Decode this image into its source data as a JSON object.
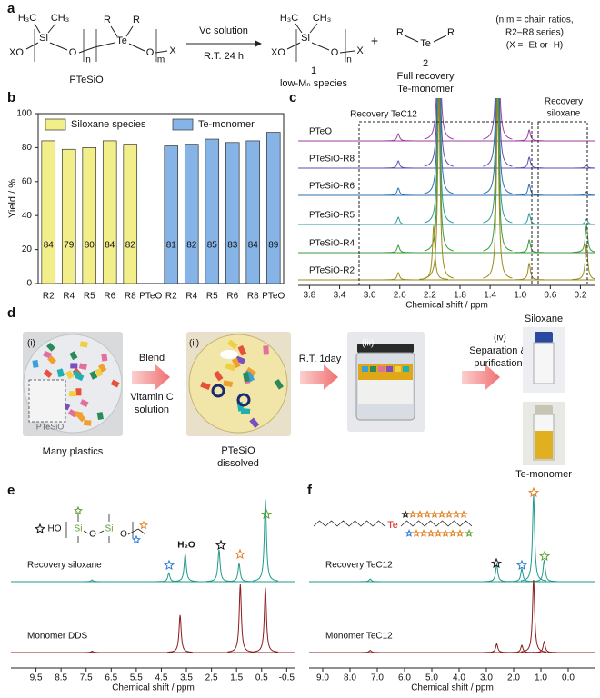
{
  "panel_labels": [
    "a",
    "b",
    "c",
    "d",
    "e",
    "f"
  ],
  "scheme": {
    "atoms": [
      "H₃C",
      "CH₃",
      "Si",
      "XO",
      "O",
      "n",
      "R",
      "R",
      "Te",
      "O",
      "m",
      "X",
      "H₃C",
      "CH₃",
      "Si",
      "XO",
      "O",
      "n",
      "X",
      "R",
      "Te",
      "R"
    ],
    "reactant_label": "PTeSiO",
    "arrow_top": "Vc solution",
    "arrow_bottom": "R.T. 24 h",
    "product1_number": "1",
    "product1_label": "low-Mₙ species",
    "plus": "+",
    "product2_number": "2",
    "product2_label": [
      "Full recovery",
      "Te-monomer"
    ],
    "note": [
      "(n:m = chain ratios,",
      "R2–R8 series)",
      "(X = -Et or -H)"
    ]
  },
  "process": {
    "steps": [
      "(i)",
      "(ii)",
      "(iii)",
      "(iv)"
    ],
    "texts": [
      "PTeSiO",
      "Many plastics",
      "Blend",
      "Vitamin C",
      "solution",
      "PTeSiO",
      "dissolved",
      "R.T. 1day",
      "Separation &",
      "purification",
      "Siloxane",
      "Te-monomer"
    ]
  },
  "molecule_e": [
    "HO",
    "Si",
    "O",
    "Si",
    "O"
  ],
  "molecule_f": [
    "Te"
  ],
  "chart_data": [
    {
      "type": "bar",
      "ylabel": "Yield / %",
      "categories": [
        "R2",
        "R4",
        "R5",
        "R6",
        "R8",
        "PTeO",
        "R2",
        "R4",
        "R5",
        "R6",
        "R8",
        "PTeO"
      ],
      "series": [
        {
          "name": "Siloxane species",
          "color": "#f2ee8a",
          "values": [
            84,
            79,
            80,
            84,
            82,
            null,
            null,
            null,
            null,
            null,
            null,
            null
          ]
        },
        {
          "name": "Te-monomer",
          "color": "#86b4e6",
          "values": [
            null,
            null,
            null,
            null,
            null,
            null,
            81,
            82,
            85,
            83,
            84,
            89
          ]
        }
      ],
      "ylim": [
        0,
        100
      ],
      "yticks": [
        0,
        20,
        40,
        60,
        80,
        100
      ]
    },
    {
      "type": "spectrum",
      "xlabel": "Chemical shift / ppm",
      "xlim": [
        3.95,
        0
      ],
      "xticks": [
        3.8,
        3.4,
        {
          "value": 3,
          "label": "3.0"
        },
        2.6,
        2.2,
        1.8,
        1.4,
        {
          "value": 1,
          "label": "1.0"
        },
        0.6,
        0.2
      ],
      "annotations": [
        "Recovery TeC12",
        "Recovery",
        "siloxane"
      ],
      "series": [
        {
          "name": "PTeO",
          "color": "#9b3fa0",
          "shifts": [
            2.62,
            2.08,
            1.3,
            0.88
          ],
          "values": [
            4,
            100,
            100,
            6
          ]
        },
        {
          "name": "PTeSiO-R8",
          "color": "#5a4fb0",
          "shifts": [
            2.62,
            2.08,
            1.3,
            0.88,
            0.12
          ],
          "values": [
            4,
            100,
            100,
            6,
            1.5
          ]
        },
        {
          "name": "PTeSiO-R6",
          "color": "#2f6fb0",
          "shifts": [
            2.62,
            2.08,
            1.3,
            0.88,
            0.12
          ],
          "values": [
            4,
            100,
            100,
            6,
            2
          ]
        },
        {
          "name": "PTeSiO-R5",
          "color": "#2a9a9a",
          "shifts": [
            2.62,
            2.08,
            1.3,
            0.88,
            0.12
          ],
          "values": [
            4,
            100,
            100,
            6,
            3
          ]
        },
        {
          "name": "PTeSiO-R4",
          "color": "#3a9a3a",
          "shifts": [
            2.62,
            2.08,
            1.3,
            0.88,
            0.12
          ],
          "values": [
            4,
            100,
            100,
            7,
            15
          ]
        },
        {
          "name": "PTeSiO-R2",
          "color": "#9a8a1a",
          "shifts": [
            2.62,
            2.15,
            2.08,
            1.3,
            0.88,
            0.12
          ],
          "values": [
            4,
            30,
            100,
            100,
            9,
            20
          ]
        }
      ]
    },
    {
      "type": "spectrum",
      "xlabel": "Chemical shift / ppm",
      "xlim": [
        10.5,
        -0.85
      ],
      "xticks": [
        9.5,
        8.5,
        7.5,
        6.5,
        5.5,
        4.5,
        3.5,
        2.5,
        1.5,
        0.5,
        -0.5
      ],
      "annotations": [
        "H₂O"
      ],
      "series": [
        {
          "name": "Recovery siloxane",
          "color": "#1f9a8c",
          "shifts": [
            7.26,
            4.2,
            3.55,
            2.2,
            1.4,
            0.35
          ],
          "values": [
            2,
            10,
            32,
            37,
            21,
            95
          ]
        },
        {
          "name": "Monomer DDS",
          "color": "#8b1c1c",
          "shifts": [
            7.26,
            3.75,
            1.35,
            0.35
          ],
          "values": [
            2,
            55,
            100,
            95
          ]
        }
      ]
    },
    {
      "type": "spectrum",
      "xlabel": "Chemical shift / ppm",
      "xlim": [
        9.5,
        -1
      ],
      "xticks": [
        {
          "value": 9,
          "label": "9.0"
        },
        {
          "value": 8,
          "label": "8.0"
        },
        {
          "value": 7,
          "label": "7.0"
        },
        {
          "value": 6,
          "label": "6.0"
        },
        {
          "value": 5,
          "label": "5.0"
        },
        {
          "value": 4,
          "label": "4.0"
        },
        {
          "value": 3,
          "label": "3.0"
        },
        {
          "value": 2,
          "label": "2.0"
        },
        {
          "value": 1,
          "label": "1.0"
        },
        {
          "value": 0,
          "label": "0.0"
        }
      ],
      "annotations": [],
      "series": [
        {
          "name": "Recovery TeC12",
          "color": "#1f9a8c",
          "shifts": [
            7.26,
            2.62,
            1.7,
            1.27,
            0.88
          ],
          "values": [
            3,
            20,
            15,
            100,
            25
          ]
        },
        {
          "name": "Monomer TeC12",
          "color": "#8b1c1c",
          "shifts": [
            7.26,
            2.62,
            1.7,
            1.27,
            0.88
          ],
          "values": [
            3,
            12,
            10,
            100,
            15
          ]
        }
      ]
    }
  ]
}
